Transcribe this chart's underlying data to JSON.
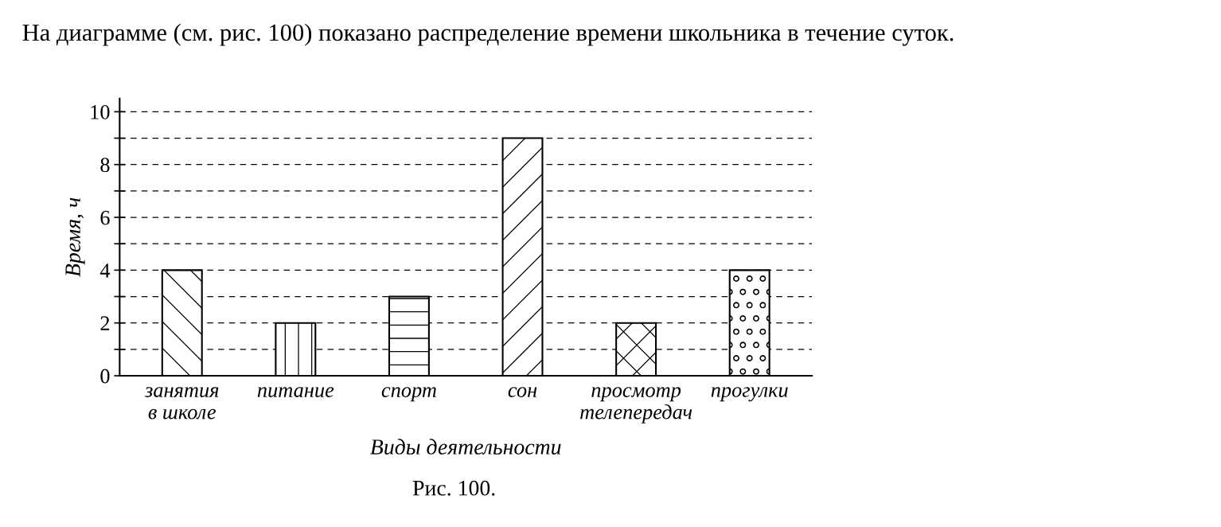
{
  "chart_data": {
    "type": "bar",
    "title": "На диаграмме (см. рис. 100) показано распределение времени школьника в течение суток.",
    "categories": [
      "занятия\nв школе",
      "питание",
      "спорт",
      "сон",
      "просмотр\nтелепередач",
      "прогулки"
    ],
    "values": [
      4,
      2,
      3,
      9,
      2,
      4
    ],
    "color": "#000000",
    "xlabel": "Виды деятельности",
    "ylabel": "Время, ч",
    "ylim": [
      0,
      10.5
    ],
    "yticks": [
      0,
      {
        "value": 1,
        "label": null
      },
      2,
      {
        "value": 3,
        "label": null
      },
      4,
      {
        "value": 5,
        "label": null
      },
      6,
      {
        "value": 7,
        "label": null
      },
      8,
      {
        "value": 9,
        "label": null
      },
      10
    ],
    "grid": "y",
    "line_style": "dashed",
    "annotations": [
      "Рис. 100."
    ]
  }
}
